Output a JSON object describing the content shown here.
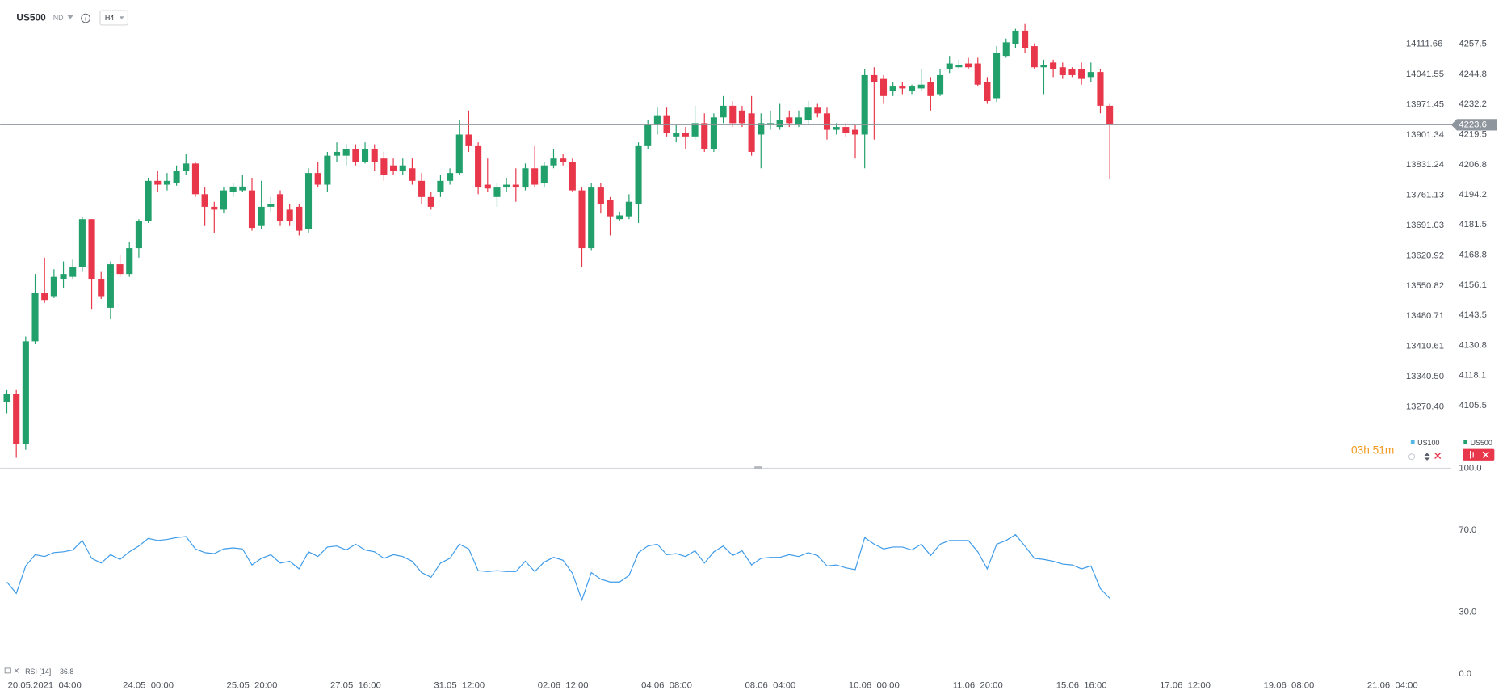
{
  "header": {
    "symbol": "US500",
    "symbol_type": "IND",
    "interval": "H4"
  },
  "countdown": "03h 51m",
  "chart_data": [
    {
      "type": "candlestick",
      "legend": [
        {
          "name": "US100",
          "color": "#55b6e6"
        },
        {
          "name": "US500",
          "color": "#22a06b"
        }
      ],
      "up_color": "#22a06b",
      "down_color": "#e8374a",
      "last_price": 4223.6,
      "ylim": [
        4079.1,
        4276.1
      ],
      "yticks": [
        4257.5,
        4244.8,
        4232.2,
        4219.5,
        4206.8,
        4194.2,
        4181.5,
        4168.8,
        4156.1,
        4143.5,
        4130.8,
        4118.1,
        4105.5
      ],
      "y2lim": [
        13127.6,
        14214.3
      ],
      "y2ticks": [
        14111.66,
        14041.55,
        13971.45,
        13901.34,
        13831.24,
        13761.13,
        13691.03,
        13620.92,
        13550.82,
        13480.71,
        13410.61,
        {
          "value": 13340.5,
          "label": "13340.50"
        },
        {
          "value": 13270.4,
          "label": "13270.40"
        }
      ],
      "xticks": [
        {
          "value": 4,
          "label": "20.05.2021  04:00"
        },
        {
          "value": 15,
          "label": "24.05  00:00"
        },
        {
          "value": 26,
          "label": "25.05  20:00"
        },
        {
          "value": 37,
          "label": "27.05  16:00"
        },
        {
          "value": 48,
          "label": "31.05  12:00"
        },
        {
          "value": 59,
          "label": "02.06  12:00"
        },
        {
          "value": 70,
          "label": "04.06  08:00"
        },
        {
          "value": 81,
          "label": "08.06  04:00"
        },
        {
          "value": 92,
          "label": "10.06  00:00"
        },
        {
          "value": 103,
          "label": "11.06  20:00"
        },
        {
          "value": 114,
          "label": "15.06  16:00"
        },
        {
          "value": 125,
          "label": "17.06  12:00"
        },
        {
          "value": 136,
          "label": "19.06  08:00"
        },
        {
          "value": 147,
          "label": "21.06  04:00"
        }
      ],
      "grid": false,
      "open": [
        4107.0,
        4110.3,
        4089.2,
        4132.5,
        4152.7,
        4151.5,
        4158.8,
        4159.6,
        4163.6,
        4183.9,
        4158.8,
        4146.6,
        4164.9,
        4160.8,
        4171.7,
        4183.1,
        4200.0,
        4198.4,
        4199.2,
        4204.1,
        4207.3,
        4194.4,
        4189.1,
        4187.9,
        4195.2,
        4196.0,
        4196.0,
        4181.0,
        4189.1,
        4194.4,
        4187.9,
        4189.1,
        4179.8,
        4203.3,
        4198.4,
        4210.6,
        4210.6,
        4213.4,
        4208.1,
        4213.4,
        4209.4,
        4206.5,
        4204.1,
        4205.3,
        4200.0,
        4193.2,
        4195.2,
        4200.0,
        4203.3,
        4219.5,
        4214.6,
        4198.4,
        4193.2,
        4197.2,
        4198.4,
        4197.2,
        4205.3,
        4199.2,
        4206.5,
        4209.4,
        4208.1,
        4196.0,
        4171.7,
        4197.2,
        4192.0,
        4183.9,
        4185.1,
        4190.3,
        4214.6,
        4223.5,
        4227.6,
        4218.7,
        4220.3,
        4218.7,
        4224.3,
        4213.4,
        4226.7,
        4231.6,
        4229.6,
        4228.4,
        4219.5,
        4223.5,
        4222.7,
        4226.7,
        4223.5,
        4225.5,
        4230.8,
        4228.4,
        4221.5,
        4222.7,
        4221.5,
        4219.5,
        4244.5,
        4242.9,
        4237.7,
        4239.7,
        4237.7,
        4238.9,
        4241.7,
        4236.5,
        4247.0,
        4247.8,
        4249.4,
        4249.4,
        4241.7,
        4234.8,
        4252.6,
        4257.5,
        4263.2,
        4256.7,
        4247.8,
        4249.8,
        4247.8,
        4247.0,
        4247.0,
        4243.7,
        4245.8,
        4231.6
      ],
      "high": [
        4112.3,
        4112.3,
        4134.5,
        4160.8,
        4167.7,
        4162.8,
        4166.1,
        4166.9,
        4184.7,
        4183.9,
        4162.0,
        4166.1,
        4168.9,
        4174.2,
        4183.9,
        4201.3,
        4204.1,
        4203.3,
        4206.5,
        4211.4,
        4208.1,
        4197.2,
        4191.2,
        4197.2,
        4199.2,
        4202.5,
        4201.3,
        4200.0,
        4193.2,
        4196.0,
        4190.3,
        4190.3,
        4205.3,
        4208.1,
        4212.2,
        4216.2,
        4215.4,
        4215.4,
        4216.2,
        4215.4,
        4212.2,
        4209.4,
        4209.4,
        4209.4,
        4203.3,
        4195.2,
        4202.5,
        4205.3,
        4225.5,
        4229.6,
        4216.2,
        4209.4,
        4199.2,
        4201.3,
        4205.3,
        4207.3,
        4214.6,
        4208.1,
        4213.4,
        4211.4,
        4209.4,
        4197.2,
        4199.2,
        4199.2,
        4193.2,
        4187.1,
        4194.4,
        4216.2,
        4225.5,
        4230.8,
        4230.8,
        4223.5,
        4222.7,
        4231.6,
        4228.4,
        4228.4,
        4235.7,
        4233.6,
        4231.6,
        4235.7,
        4228.4,
        4229.6,
        4232.4,
        4229.6,
        4229.6,
        4233.6,
        4232.4,
        4230.8,
        4224.3,
        4224.3,
        4223.5,
        4247.0,
        4247.8,
        4244.5,
        4241.7,
        4241.7,
        4240.5,
        4247.0,
        4243.7,
        4247.0,
        4252.6,
        4251.0,
        4251.8,
        4251.8,
        4243.7,
        4256.7,
        4259.9,
        4264.0,
        4266.0,
        4257.9,
        4251.0,
        4251.0,
        4249.8,
        4247.8,
        4249.8,
        4249.8,
        4247.0,
        4232.4
      ],
      "low": [
        4102.2,
        4083.5,
        4086.8,
        4131.3,
        4148.7,
        4150.7,
        4154.7,
        4158.8,
        4162.0,
        4145.8,
        4150.3,
        4141.8,
        4159.6,
        4159.6,
        4167.7,
        4182.3,
        4195.2,
        4196.0,
        4198.0,
        4202.5,
        4193.2,
        4181.0,
        4178.2,
        4186.3,
        4193.2,
        4195.2,
        4179.0,
        4179.8,
        4187.1,
        4181.0,
        4181.0,
        4177.0,
        4178.2,
        4197.2,
        4195.2,
        4208.1,
        4206.5,
        4206.5,
        4207.3,
        4204.1,
        4200.0,
        4202.5,
        4202.5,
        4198.4,
        4190.3,
        4187.9,
        4193.2,
        4198.4,
        4202.5,
        4212.2,
        4194.4,
        4195.2,
        4189.1,
        4195.2,
        4191.2,
        4196.0,
        4197.2,
        4197.2,
        4205.3,
        4206.5,
        4195.2,
        4163.6,
        4170.9,
        4186.3,
        4177.0,
        4183.1,
        4183.9,
        4182.3,
        4213.4,
        4219.5,
        4218.7,
        4216.2,
        4213.4,
        4217.4,
        4212.2,
        4212.2,
        4224.3,
        4222.7,
        4222.7,
        4210.6,
        4205.3,
        4221.5,
        4221.5,
        4222.7,
        4222.7,
        4223.5,
        4226.7,
        4217.4,
        4219.5,
        4218.7,
        4209.4,
        4205.3,
        4217.4,
        4232.4,
        4235.7,
        4236.5,
        4236.5,
        4237.7,
        4229.6,
        4235.7,
        4245.4,
        4247.0,
        4247.0,
        4239.7,
        4232.4,
        4233.2,
        4251.8,
        4255.9,
        4253.9,
        4247.0,
        4236.5,
        4243.7,
        4242.9,
        4243.7,
        4240.5,
        4241.7,
        4228.4,
        4200.9
      ],
      "close": [
        4110.3,
        4089.2,
        4132.5,
        4152.7,
        4149.9,
        4159.6,
        4160.8,
        4163.6,
        4183.9,
        4158.8,
        4151.5,
        4164.9,
        4160.8,
        4171.7,
        4183.1,
        4200.0,
        4198.4,
        4200.0,
        4204.1,
        4207.3,
        4194.4,
        4189.1,
        4187.9,
        4196.0,
        4197.6,
        4197.6,
        4180.2,
        4189.1,
        4190.3,
        4183.1,
        4183.1,
        4179.0,
        4203.3,
        4198.4,
        4210.6,
        4212.2,
        4213.4,
        4208.1,
        4213.4,
        4208.1,
        4202.5,
        4204.1,
        4206.5,
        4200.0,
        4193.2,
        4189.1,
        4200.0,
        4203.3,
        4219.5,
        4214.6,
        4197.2,
        4196.8,
        4197.2,
        4198.4,
        4197.2,
        4205.3,
        4198.4,
        4206.5,
        4209.4,
        4208.1,
        4196.0,
        4171.7,
        4197.2,
        4190.3,
        4185.1,
        4185.5,
        4191.2,
        4214.6,
        4223.5,
        4227.6,
        4220.3,
        4220.3,
        4218.7,
        4224.3,
        4213.4,
        4226.7,
        4231.6,
        4224.3,
        4224.3,
        4212.2,
        4224.3,
        4224.3,
        4225.5,
        4224.3,
        4226.7,
        4230.8,
        4228.4,
        4221.5,
        4222.7,
        4220.3,
        4219.5,
        4244.5,
        4241.7,
        4235.7,
        4239.7,
        4238.9,
        4239.7,
        4240.5,
        4235.7,
        4244.5,
        4249.4,
        4248.6,
        4247.8,
        4240.5,
        4233.6,
        4253.9,
        4258.3,
        4263.2,
        4255.9,
        4247.8,
        4248.6,
        4247.0,
        4244.5,
        4244.5,
        4242.9,
        4245.8,
        4231.6,
        4223.6
      ]
    },
    {
      "type": "line",
      "name": "RSI [14]",
      "color": "#3d9be9",
      "ylim": [
        0,
        100
      ],
      "yticks": [
        {
          "value": 100,
          "label": "100.0"
        },
        {
          "value": 70,
          "label": "70.0"
        },
        {
          "value": 30,
          "label": "30.0"
        },
        {
          "value": 0,
          "label": "0.0"
        }
      ],
      "grid": false,
      "values": [
        44.7,
        39.2,
        52.5,
        58.0,
        57.1,
        59.0,
        59.4,
        60.3,
        64.9,
        56.2,
        53.9,
        58.0,
        55.7,
        59.4,
        62.2,
        65.9,
        64.9,
        65.4,
        66.3,
        66.8,
        60.8,
        59.0,
        58.5,
        60.8,
        61.3,
        60.8,
        53.0,
        56.2,
        58.0,
        53.9,
        54.8,
        51.1,
        59.4,
        57.1,
        61.7,
        62.2,
        60.3,
        63.1,
        60.3,
        59.4,
        56.2,
        58.0,
        57.1,
        54.8,
        49.3,
        47.0,
        53.9,
        56.2,
        63.1,
        60.8,
        50.2,
        49.8,
        50.2,
        49.8,
        49.8,
        54.8,
        49.8,
        54.4,
        56.7,
        55.3,
        48.9,
        36.0,
        49.3,
        46.1,
        44.7,
        44.7,
        47.9,
        59.0,
        62.2,
        63.1,
        58.0,
        58.5,
        57.1,
        59.9,
        53.9,
        59.4,
        62.2,
        57.6,
        59.9,
        53.0,
        56.2,
        56.7,
        56.7,
        58.0,
        57.1,
        59.0,
        57.6,
        52.5,
        53.0,
        51.6,
        50.7,
        66.3,
        63.1,
        60.8,
        61.7,
        61.7,
        60.3,
        63.1,
        57.6,
        63.1,
        64.9,
        64.9,
        64.9,
        59.4,
        51.1,
        63.1,
        64.9,
        67.7,
        62.2,
        56.2,
        55.7,
        54.8,
        53.4,
        53.0,
        51.1,
        52.5,
        41.5,
        36.8
      ]
    }
  ]
}
